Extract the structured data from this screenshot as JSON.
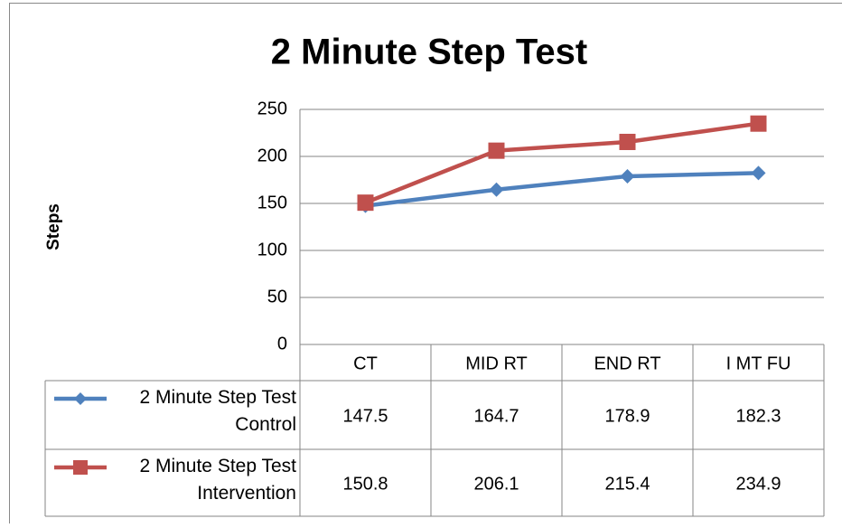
{
  "chart_data": {
    "type": "line",
    "title": "2 Minute Step Test",
    "y_label": "Steps",
    "categories": [
      "CT",
      "MID RT",
      "END RT",
      "I MT FU"
    ],
    "series": [
      {
        "name": "2 Minute Step Test Control",
        "color": "#4f81bd",
        "marker": "diamond",
        "values": [
          147.5,
          164.7,
          178.9,
          182.3
        ]
      },
      {
        "name": "2 Minute Step Test Intervention",
        "color": "#c0504d",
        "marker": "square",
        "values": [
          150.8,
          206.1,
          215.4,
          234.9
        ]
      }
    ],
    "ylim": [
      0,
      250
    ],
    "yticks": [
      0,
      50,
      100,
      150,
      200,
      250
    ],
    "grid": true,
    "data_table": true
  }
}
